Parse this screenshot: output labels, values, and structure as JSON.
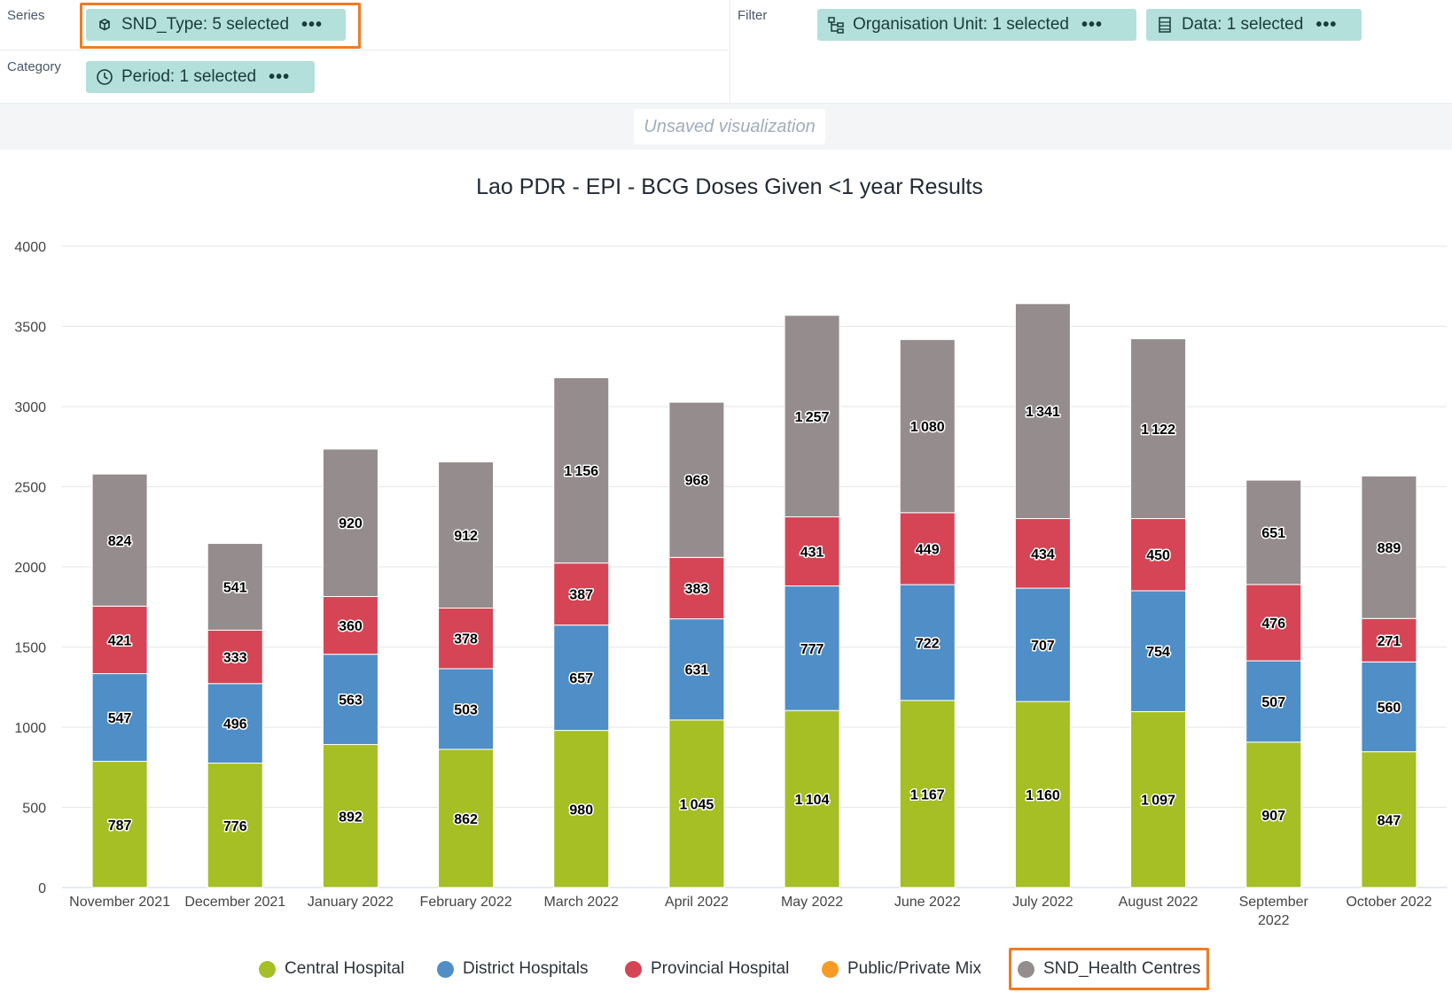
{
  "layout": {
    "series_label": "Series",
    "category_label": "Category",
    "filter_label": "Filter",
    "chips": {
      "series": "SND_Type: 5 selected",
      "category": "Period: 1 selected",
      "org_unit": "Organisation Unit: 1 selected",
      "data": "Data: 1 selected"
    },
    "chip_menu": "•••"
  },
  "status": {
    "unsaved": "Unsaved visualization"
  },
  "colors": {
    "chip_bg": "#b3e0db",
    "highlight": "#f07b23",
    "central": "#a5bf24",
    "district": "#4f8ec6",
    "provincial": "#d64555",
    "ppm": "#f79b24",
    "health_centres": "#958d8d"
  },
  "chart_data": {
    "type": "bar",
    "stacked": true,
    "title": "Lao PDR - EPI - BCG Doses Given <1 year Results",
    "xlabel": "",
    "ylabel": "",
    "ylim": [
      0,
      4000
    ],
    "yticks": [
      0,
      500,
      1000,
      1500,
      2000,
      2500,
      3000,
      3500,
      4000
    ],
    "grid": true,
    "legend_position": "bottom",
    "categories": [
      "November 2021",
      "December 2021",
      "January 2022",
      "February 2022",
      "March 2022",
      "April 2022",
      "May 2022",
      "June 2022",
      "July 2022",
      "August 2022",
      "September 2022",
      "October 2022"
    ],
    "series": [
      {
        "name": "Central Hospital",
        "color": "#a5bf24",
        "values": [
          787,
          776,
          892,
          862,
          980,
          1045,
          1104,
          1167,
          1160,
          1097,
          907,
          847
        ]
      },
      {
        "name": "District Hospitals",
        "color": "#4f8ec6",
        "values": [
          547,
          496,
          563,
          503,
          657,
          631,
          777,
          722,
          707,
          754,
          507,
          560
        ]
      },
      {
        "name": "Provincial Hospital",
        "color": "#d64555",
        "values": [
          421,
          333,
          360,
          378,
          387,
          383,
          431,
          449,
          434,
          450,
          476,
          271
        ]
      },
      {
        "name": "Public/Private Mix",
        "color": "#f79b24",
        "values": [
          0,
          0,
          0,
          0,
          0,
          0,
          0,
          0,
          0,
          0,
          0,
          0
        ]
      },
      {
        "name": "SND_Health Centres",
        "color": "#958d8d",
        "values": [
          824,
          541,
          920,
          912,
          1156,
          968,
          1257,
          1080,
          1341,
          1122,
          651,
          889
        ]
      }
    ]
  }
}
